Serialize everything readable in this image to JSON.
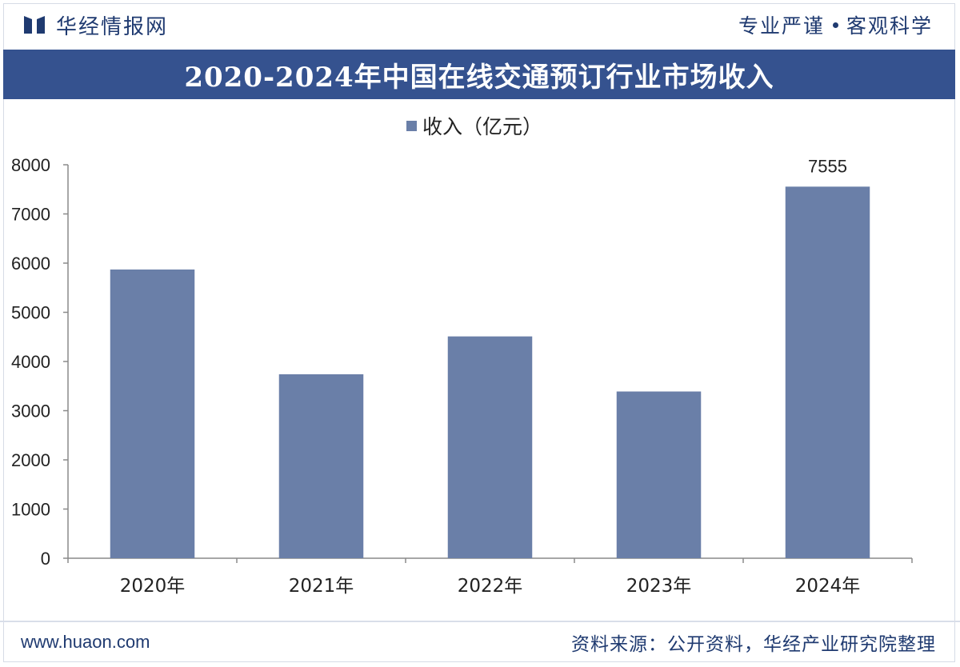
{
  "header": {
    "brand_name": "华经情报网",
    "slogan_left": "专业严谨",
    "slogan_right": "客观科学",
    "title": "2020-2024年中国在线交通预订行业市场收入"
  },
  "footer": {
    "website": "www.huaon.com",
    "source": "资料来源：公开资料，华经产业研究院整理"
  },
  "colors": {
    "brand": "#1f3a70",
    "title_bar": "#35528f",
    "bar": "#6a7fa8"
  },
  "chart_data": {
    "type": "bar",
    "categories": [
      "2020年",
      "2021年",
      "2022年",
      "2023年",
      "2024年"
    ],
    "series": [
      {
        "name": "收入（亿元）",
        "values": [
          5870,
          3740,
          4510,
          3390,
          7555
        ]
      }
    ],
    "data_labels": [
      "",
      "",
      "",
      "",
      "7555"
    ],
    "ylim": [
      0,
      8000
    ],
    "yticks": [
      0,
      1000,
      2000,
      3000,
      4000,
      5000,
      6000,
      7000,
      8000
    ],
    "legend_position": "top",
    "grid": false
  }
}
